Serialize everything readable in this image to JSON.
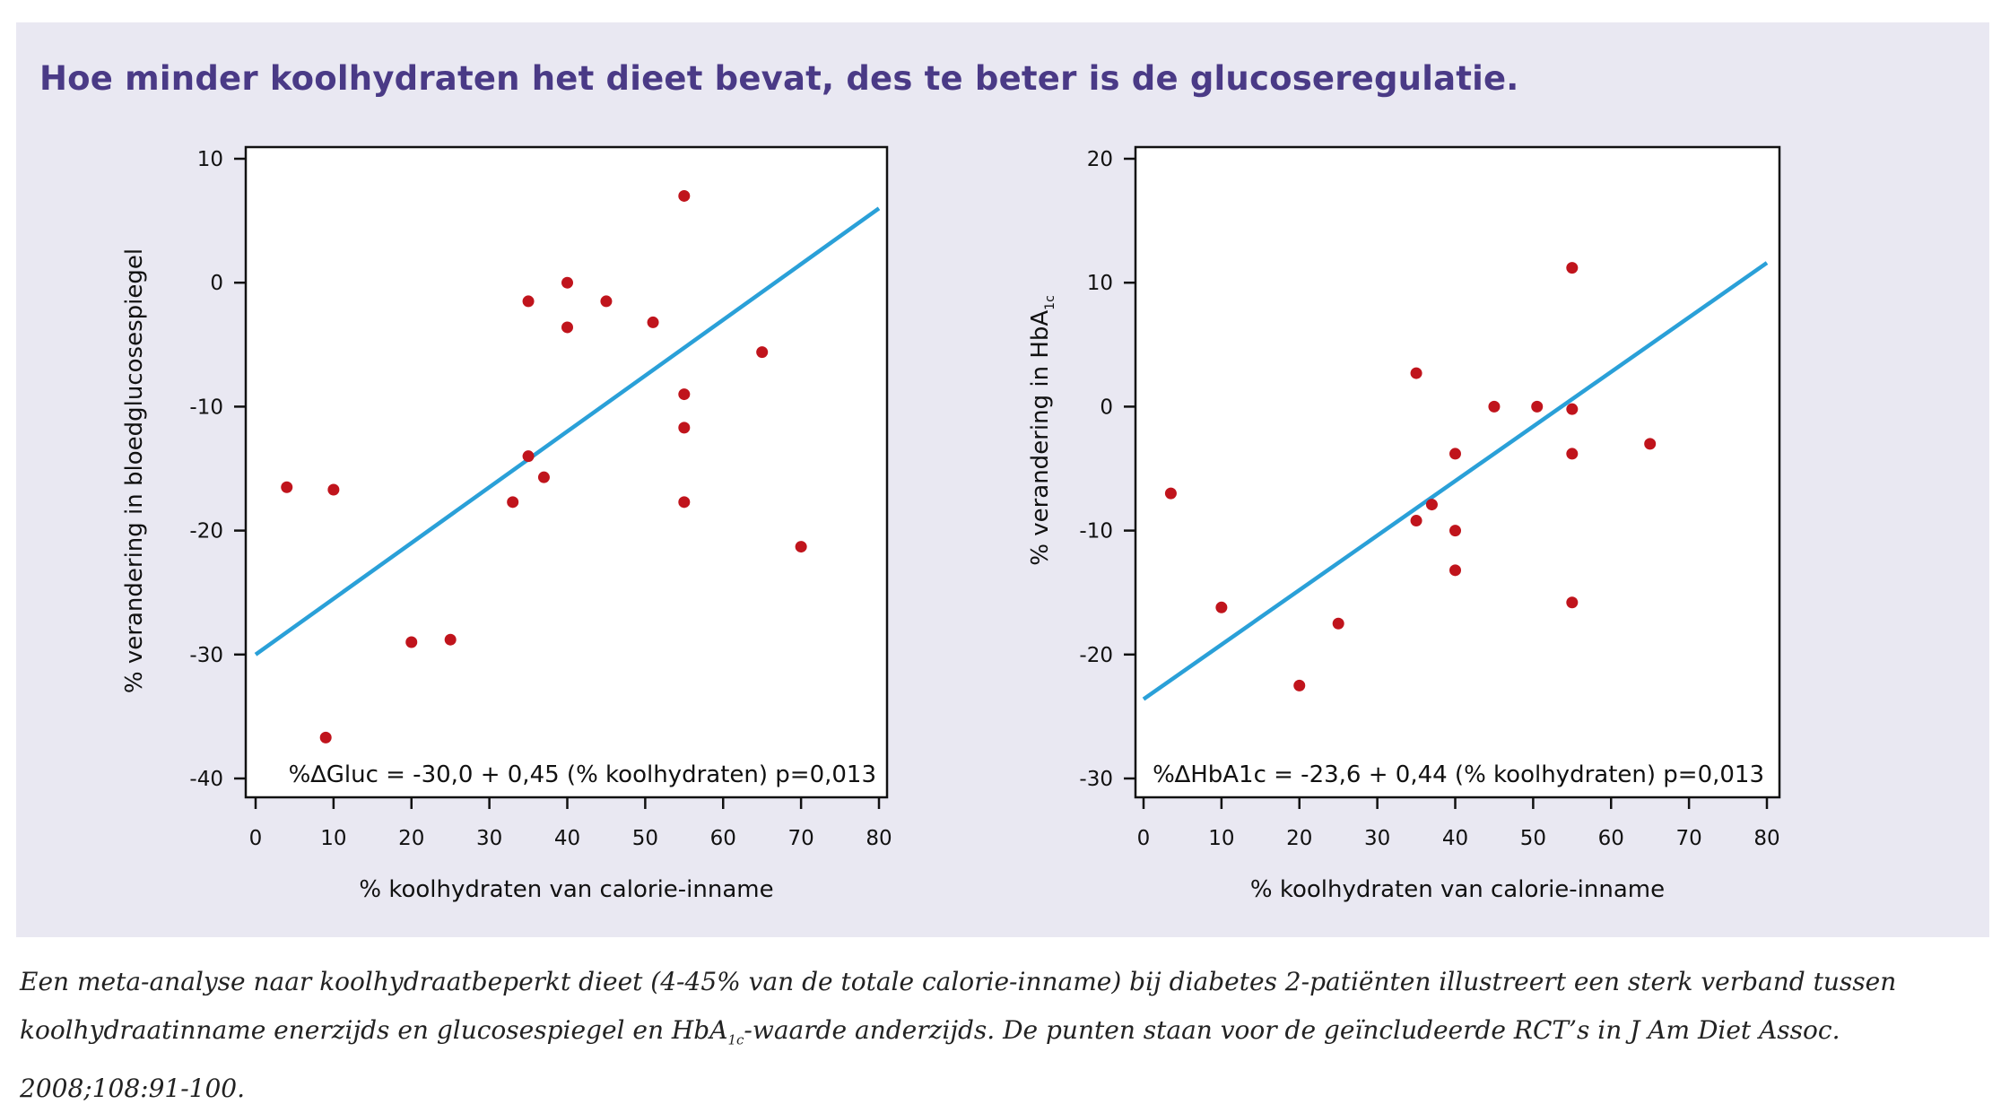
{
  "headline": "Hoe minder koolhydraten het dieet bevat, des te beter is de glucoseregulatie.",
  "colors": {
    "panel_bg": "#e9e8f2",
    "headline": "#4a3a86",
    "point": "#c0141c",
    "line": "#2aa0d8"
  },
  "chart_data": [
    {
      "type": "scatter",
      "ylabel": "% verandering in bloedglucosespiegel",
      "ylabel_sub": "",
      "xlabel": "% koolhydraten van calorie-inname",
      "xlim": [
        0,
        80
      ],
      "ylim": [
        -40,
        10
      ],
      "xticks": [
        0,
        10,
        20,
        30,
        40,
        50,
        60,
        70,
        80
      ],
      "yticks": [
        10,
        0,
        -10,
        -20,
        -30,
        -40
      ],
      "equation": "%∆Gluc = -30,0 + 0,45  (% koolhydraten) p=0,013",
      "regression": {
        "intercept": -30.0,
        "slope": 0.45
      },
      "points": [
        {
          "x": 4,
          "y": -16.5
        },
        {
          "x": 10,
          "y": -16.7
        },
        {
          "x": 9,
          "y": -36.7
        },
        {
          "x": 20,
          "y": -29
        },
        {
          "x": 25,
          "y": -28.8
        },
        {
          "x": 33,
          "y": -17.7
        },
        {
          "x": 35,
          "y": -14
        },
        {
          "x": 35,
          "y": -1.5
        },
        {
          "x": 37,
          "y": -15.7
        },
        {
          "x": 40,
          "y": 0
        },
        {
          "x": 40,
          "y": -3.6
        },
        {
          "x": 45,
          "y": -1.5
        },
        {
          "x": 51,
          "y": -3.2
        },
        {
          "x": 55,
          "y": 7
        },
        {
          "x": 55,
          "y": -9
        },
        {
          "x": 55,
          "y": -11.7
        },
        {
          "x": 55,
          "y": -17.7
        },
        {
          "x": 65,
          "y": -5.6
        },
        {
          "x": 70,
          "y": -21.3
        }
      ]
    },
    {
      "type": "scatter",
      "ylabel": "% verandering in HbA",
      "ylabel_sub": "1c",
      "xlabel": "% koolhydraten van calorie-inname",
      "xlim": [
        0,
        80
      ],
      "ylim": [
        -30,
        20
      ],
      "xticks": [
        0,
        10,
        20,
        30,
        40,
        50,
        60,
        70,
        80
      ],
      "yticks": [
        20,
        10,
        0,
        -10,
        -20,
        -30
      ],
      "equation": "%∆HbA1c = -23,6 + 0,44 (% koolhydraten) p=0,013",
      "regression": {
        "intercept": -23.6,
        "slope": 0.44
      },
      "points": [
        {
          "x": 3.5,
          "y": -7
        },
        {
          "x": 10,
          "y": -16.2
        },
        {
          "x": 20,
          "y": -22.5
        },
        {
          "x": 25,
          "y": -17.5
        },
        {
          "x": 35,
          "y": 2.7
        },
        {
          "x": 35,
          "y": -9.2
        },
        {
          "x": 37,
          "y": -7.9
        },
        {
          "x": 40,
          "y": -3.8
        },
        {
          "x": 40,
          "y": -10
        },
        {
          "x": 40,
          "y": -13.2
        },
        {
          "x": 45,
          "y": 0
        },
        {
          "x": 50.5,
          "y": 0
        },
        {
          "x": 55,
          "y": 11.2
        },
        {
          "x": 55,
          "y": -0.2
        },
        {
          "x": 55,
          "y": -3.8
        },
        {
          "x": 55,
          "y": -15.8
        },
        {
          "x": 65,
          "y": -3
        }
      ]
    }
  ],
  "caption": {
    "part1": "Een meta-analyse naar koolhydraatbeperkt dieet (4-45% van de totale calorie-inname) bij diabetes 2-patiënten illustreert een sterk verband tussen koolhydraatinname enerzijds en glucosespiegel en HbA",
    "sub": "1c",
    "part2": "-waarde anderzijds. De punten staan voor de geïncludeerde RCT’s in J Am Diet Assoc. 2008;108:91-100."
  }
}
